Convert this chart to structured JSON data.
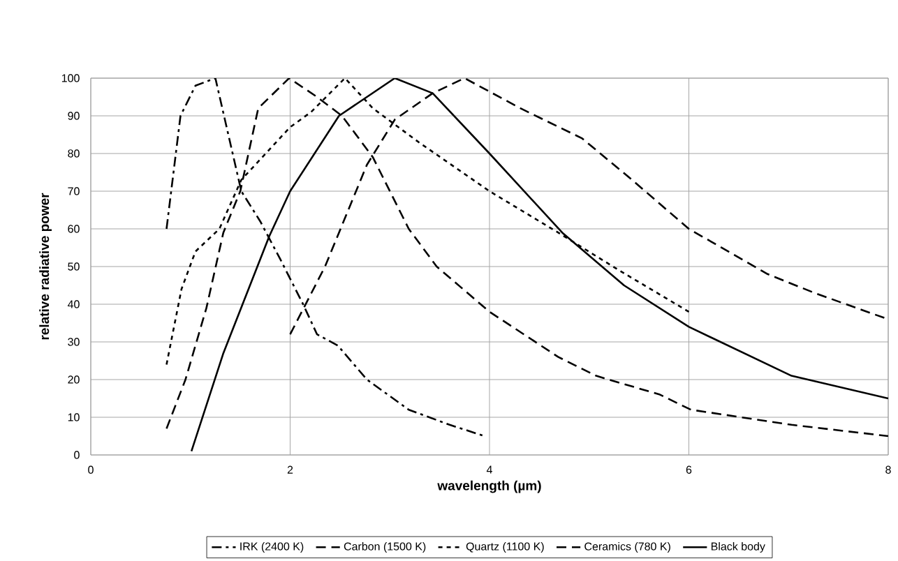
{
  "chart_data": {
    "type": "line",
    "xlabel": "wavelength (µm)",
    "ylabel": "relative radiative power",
    "xlim": [
      0,
      8
    ],
    "ylim": [
      0,
      100
    ],
    "xticks": [
      0,
      2,
      4,
      6,
      8
    ],
    "yticks": [
      0,
      10,
      20,
      30,
      40,
      50,
      60,
      70,
      80,
      90,
      100
    ],
    "grid": true,
    "legend": "bottom",
    "marker": "none",
    "series": [
      {
        "name": "IRK (2400 K)",
        "color": "#000000",
        "line_style": "dashdot",
        "x": [
          0.76,
          0.9,
          1.05,
          1.25,
          1.38,
          1.51,
          1.7,
          1.9,
          2.13,
          2.27,
          2.48,
          2.77,
          3.19,
          3.6,
          3.95
        ],
        "values": [
          60,
          90,
          98,
          100,
          85,
          70,
          62,
          52,
          40,
          32,
          29,
          20,
          12,
          8,
          5
        ]
      },
      {
        "name": "Carbon (1500 K)",
        "color": "#000000",
        "line_style": "dashed",
        "x": [
          0.76,
          0.95,
          1.16,
          1.33,
          1.5,
          1.68,
          1.99,
          2.27,
          2.52,
          2.83,
          3.19,
          3.47,
          4.0,
          4.69,
          5.07,
          5.71,
          6.02,
          7.03,
          8.0
        ],
        "values": [
          7,
          20,
          39,
          59,
          70,
          92,
          100,
          95,
          90,
          79,
          60,
          50,
          38,
          26,
          21,
          16,
          12,
          8,
          5
        ]
      },
      {
        "name": "Quartz (1100 K)",
        "color": "#000000",
        "line_style": "dotted",
        "x": [
          0.76,
          0.91,
          1.05,
          1.29,
          1.51,
          1.79,
          2.0,
          2.21,
          2.55,
          2.83,
          3.29,
          4.0,
          4.69,
          5.3,
          6.0
        ],
        "values": [
          24,
          44,
          54,
          60,
          73,
          81,
          87,
          91,
          100,
          92,
          83,
          70,
          59,
          49,
          38
        ]
      },
      {
        "name": "Ceramics (780 K)",
        "color": "#000000",
        "line_style": "dashed",
        "x": [
          2.0,
          2.35,
          2.77,
          3.05,
          3.43,
          3.75,
          4.31,
          4.93,
          5.43,
          6.0,
          6.79,
          7.26,
          8.0
        ],
        "values": [
          32,
          50,
          77,
          89,
          96,
          100,
          92,
          84,
          73,
          60,
          48,
          43,
          36
        ]
      },
      {
        "name": "Black body",
        "color": "#000000",
        "line_style": "solid",
        "x": [
          1.01,
          1.33,
          1.79,
          2.0,
          2.49,
          3.05,
          3.43,
          4.0,
          4.73,
          5.35,
          6.0,
          7.03,
          8.0
        ],
        "values": [
          1,
          27,
          58,
          70,
          90,
          100,
          96,
          80,
          59,
          45,
          34,
          21,
          15
        ]
      }
    ]
  }
}
